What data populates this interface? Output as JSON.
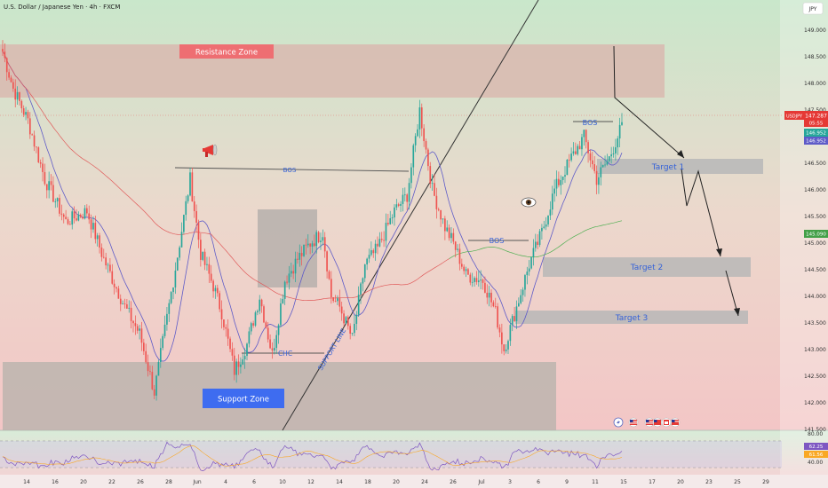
{
  "title": "U.S. Dollar / Japanese Yen · 4h · FXCM",
  "currency": "JPY",
  "symbol_badge": "USDJPY",
  "colors": {
    "bull": "#26a69a",
    "bear": "#ef5350",
    "zone_top": "#d9b8b0",
    "zone_bottom": "#b9b3ad",
    "target": "#b7b7b7",
    "blue_label": "#3461d8",
    "ma_fast": "#5e5bc8",
    "ma_slow_red": "#e05a5a",
    "ma_slow_green": "#4caf50"
  },
  "chart_data": {
    "type": "candlestick",
    "ylim": [
      141.5,
      149.5
    ],
    "y_ticks": [
      "149.000",
      "148.500",
      "148.000",
      "147.500",
      "147.000",
      "146.500",
      "146.000",
      "145.500",
      "145.000",
      "144.500",
      "144.000",
      "143.500",
      "143.000",
      "142.500",
      "142.000",
      "141.500"
    ],
    "x_ticks": [
      "14",
      "16",
      "20",
      "22",
      "26",
      "28",
      "Jun",
      "4",
      "6",
      "10",
      "12",
      "14",
      "18",
      "20",
      "24",
      "26",
      "Jul",
      "3",
      "6",
      "9",
      "11",
      "15",
      "17",
      "20",
      "23",
      "25",
      "29"
    ],
    "price_anchors": [
      [
        0,
        148.6
      ],
      [
        5,
        147.9
      ],
      [
        12,
        147.3
      ],
      [
        20,
        146.2
      ],
      [
        30,
        145.4
      ],
      [
        40,
        145.6
      ],
      [
        48,
        144.7
      ],
      [
        58,
        143.8
      ],
      [
        65,
        143.3
      ],
      [
        72,
        142.2
      ],
      [
        78,
        143.6
      ],
      [
        84,
        145.0
      ],
      [
        89,
        146.2
      ],
      [
        94,
        144.8
      ],
      [
        100,
        144.2
      ],
      [
        104,
        143.7
      ],
      [
        110,
        142.6
      ],
      [
        116,
        143.1
      ],
      [
        122,
        144.0
      ],
      [
        128,
        142.9
      ],
      [
        134,
        144.3
      ],
      [
        140,
        144.7
      ],
      [
        146,
        145.0
      ],
      [
        152,
        145.2
      ],
      [
        156,
        144.0
      ],
      [
        160,
        143.8
      ],
      [
        166,
        143.2
      ],
      [
        172,
        144.6
      ],
      [
        178,
        144.9
      ],
      [
        186,
        145.6
      ],
      [
        192,
        145.9
      ],
      [
        198,
        147.5
      ],
      [
        204,
        146.0
      ],
      [
        210,
        145.3
      ],
      [
        214,
        145.0
      ],
      [
        220,
        144.4
      ],
      [
        228,
        144.3
      ],
      [
        234,
        143.7
      ],
      [
        238,
        143.0
      ],
      [
        244,
        143.8
      ],
      [
        250,
        144.6
      ],
      [
        256,
        145.2
      ],
      [
        262,
        146.0
      ],
      [
        270,
        146.6
      ],
      [
        276,
        147.0
      ],
      [
        282,
        146.2
      ],
      [
        288,
        146.6
      ],
      [
        294,
        147.2
      ]
    ],
    "levels": {
      "last_price": "147.287",
      "countdown": "05:55",
      "ma_fast_value": "146.952",
      "ma_mid_value": "146.952",
      "ma_slow_value": "145.090"
    },
    "rsi": {
      "ylim": [
        40,
        80
      ],
      "labels": [
        "80.00",
        "62.25",
        "61.56",
        "40.00"
      ],
      "levels": [
        70,
        30
      ]
    }
  },
  "annotations": {
    "resistance_zone": "Resistance Zone",
    "support_zone": "Support Zone",
    "bos_1": "BOS",
    "bos_2": "BOS",
    "bos_3": "BOS",
    "chc": "CHC",
    "support_line": "SUPPORT LINE",
    "target_1": "Target 1",
    "target_2": "Target 2",
    "target_3": "Target 3"
  },
  "icons": [
    "megaphone-icon",
    "eye-icon",
    "lightning-icon",
    "us-flag-icon",
    "us-flag-icon",
    "calendar-icon"
  ]
}
